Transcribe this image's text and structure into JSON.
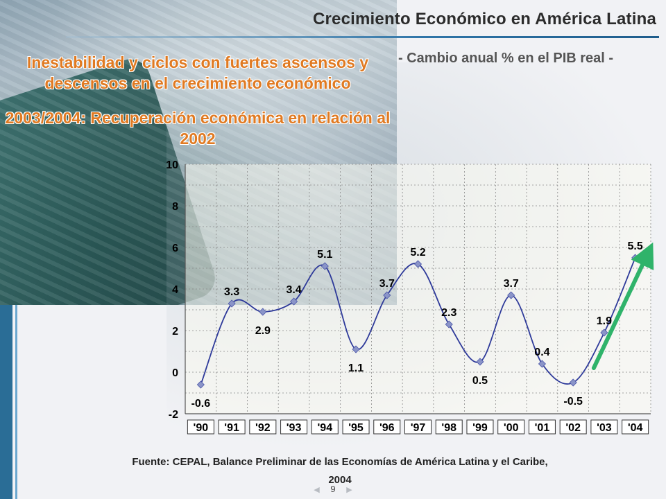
{
  "slide": {
    "title": "Crecimiento Económico en América Latina",
    "subtitle": "- Cambio anual % en el PIB real -",
    "headline_1": "Inestabilidad y ciclos con fuertes ascensos y descensos en el crecimiento económico",
    "headline_2": "2003/2004: Recuperación económica en relación al 2002",
    "source": "Fuente: CEPAL, Balance Preliminar de las Economías de América Latina y el Caribe, 2004",
    "page_number": "9",
    "prev_icon": "triangle-left-icon",
    "next_icon": "triangle-right-icon",
    "colors": {
      "headline": "#e07a22",
      "line": "#2e3a9a",
      "marker": "#8a94c8",
      "trend_arrow": "#2fb36a",
      "bar": "#2a6d96"
    }
  },
  "chart_data": {
    "type": "line",
    "categories": [
      "'90",
      "'91",
      "'92",
      "'93",
      "'94",
      "'95",
      "'96",
      "'97",
      "'98",
      "'99",
      "'00",
      "'01",
      "'02",
      "'03",
      "'04"
    ],
    "y_ticks": [
      "-2",
      "0",
      "2",
      "4",
      "6",
      "8",
      "10"
    ],
    "series": [
      {
        "values": [
          -0.6,
          3.3,
          2.9,
          3.4,
          5.1,
          1.1,
          3.7,
          5.2,
          2.3,
          0.5,
          3.7,
          0.4,
          -0.5,
          1.9,
          5.5
        ],
        "labels": [
          "-0.6",
          "3.3",
          "2.9",
          "3.4",
          "5.1",
          "1.1",
          "3.7",
          "5.2",
          "2.3",
          "0.5",
          "3.7",
          "0.4",
          "-0.5",
          "1.9",
          "5.5"
        ]
      }
    ],
    "ylim": [
      -2,
      10
    ],
    "grid": true,
    "smooth": true,
    "annotation": "upward green arrow over '03–'04"
  }
}
